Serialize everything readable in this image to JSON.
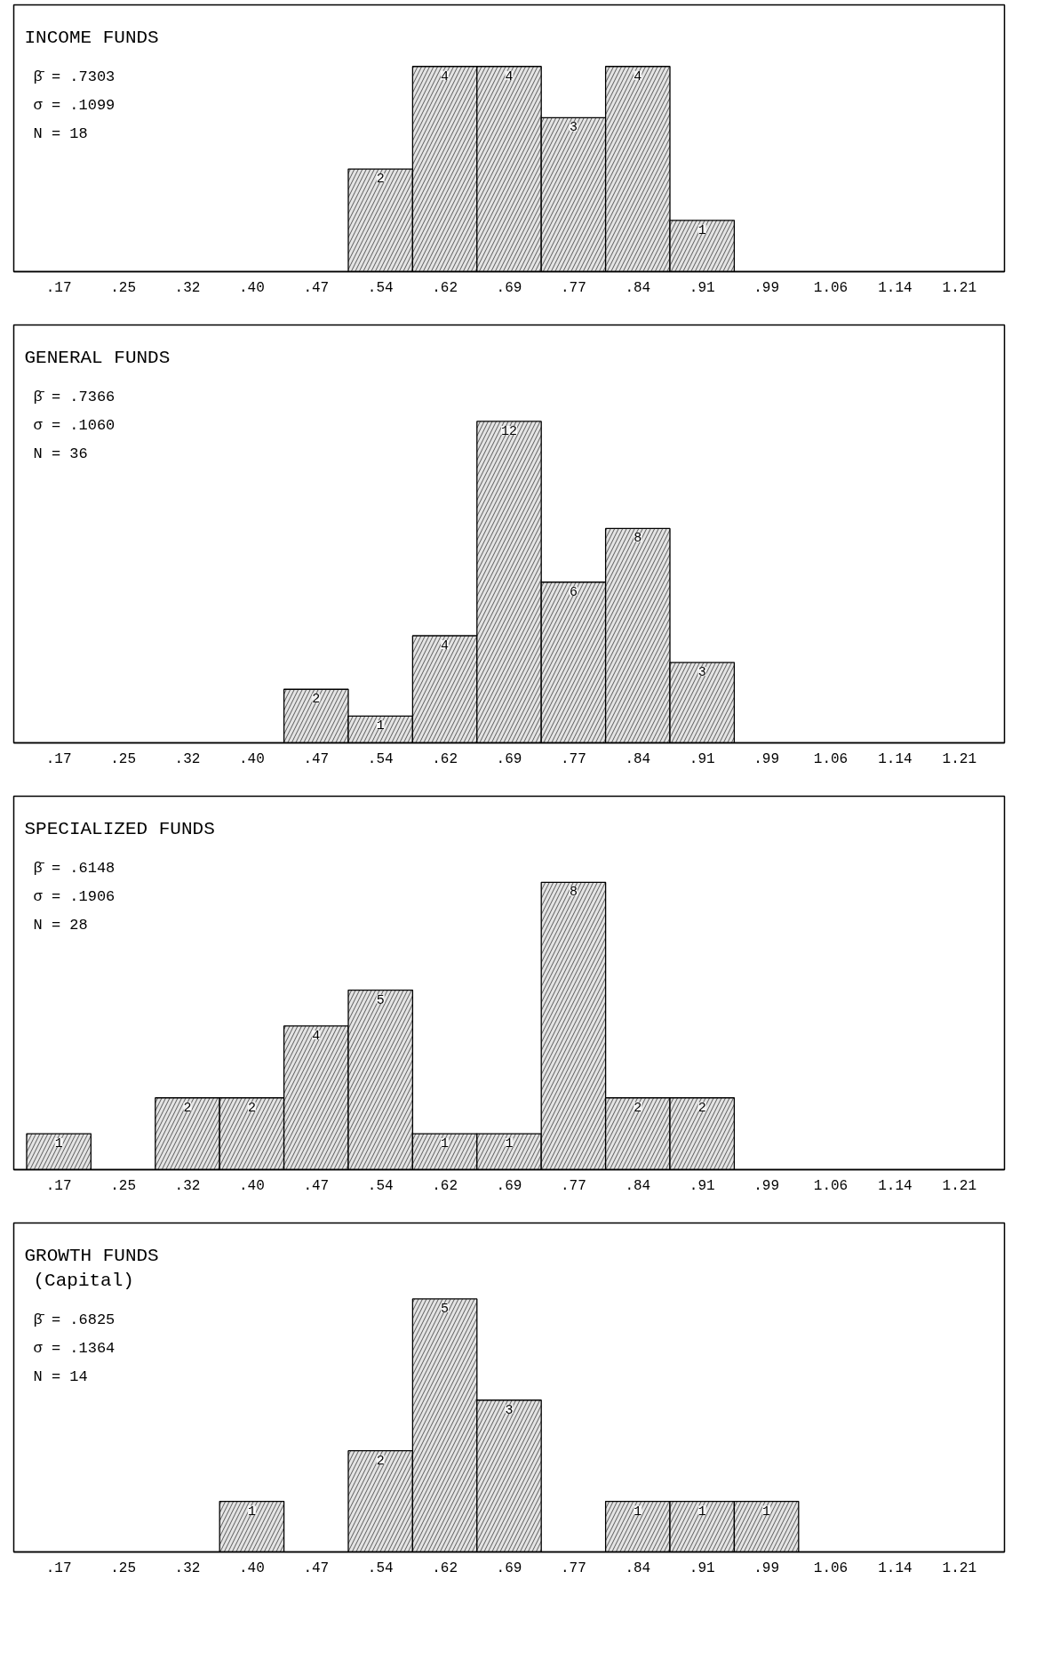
{
  "chart_data": [
    {
      "type": "bar",
      "title": "INCOME FUNDS",
      "annotations": [
        "β̄ = .7303",
        "σ = .1099",
        "N = 18"
      ],
      "categories": [
        ".17",
        ".25",
        ".32",
        ".40",
        ".47",
        ".54",
        ".62",
        ".69",
        ".77",
        ".84",
        ".91",
        ".99",
        "1.06",
        "1.14",
        "1.21"
      ],
      "values": [
        null,
        null,
        null,
        null,
        null,
        2,
        4,
        4,
        3,
        4,
        1,
        null,
        null,
        null,
        null
      ],
      "color": "#e4e4e4",
      "data_labels": true,
      "tick_labels": "x"
    },
    {
      "type": "bar",
      "title": "GENERAL FUNDS",
      "annotations": [
        "β̄ = .7366",
        "σ = .1060",
        "N = 36"
      ],
      "categories": [
        ".17",
        ".25",
        ".32",
        ".40",
        ".47",
        ".54",
        ".62",
        ".69",
        ".77",
        ".84",
        ".91",
        ".99",
        "1.06",
        "1.14",
        "1.21"
      ],
      "values": [
        null,
        null,
        null,
        null,
        2,
        1,
        4,
        12,
        6,
        8,
        3,
        null,
        null,
        null,
        null
      ],
      "color": "#e4e4e4",
      "data_labels": true,
      "tick_labels": "x"
    },
    {
      "type": "bar",
      "title": "SPECIALIZED FUNDS",
      "annotations": [
        "β̄ = .6148",
        "σ = .1906",
        "N = 28"
      ],
      "categories": [
        ".17",
        ".25",
        ".32",
        ".40",
        ".47",
        ".54",
        ".62",
        ".69",
        ".77",
        ".84",
        ".91",
        ".99",
        "1.06",
        "1.14",
        "1.21"
      ],
      "values": [
        1,
        null,
        2,
        2,
        4,
        5,
        1,
        1,
        8,
        2,
        2,
        null,
        null,
        null,
        null
      ],
      "color": "#e4e4e4",
      "data_labels": true,
      "tick_labels": "x"
    },
    {
      "type": "bar",
      "title": "GROWTH FUNDS",
      "subtitle": "(Capital)",
      "annotations": [
        "β̄ = .6825",
        "σ = .1364",
        "N = 14"
      ],
      "categories": [
        ".17",
        ".25",
        ".32",
        ".40",
        ".47",
        ".54",
        ".62",
        ".69",
        ".77",
        ".84",
        ".91",
        ".99",
        "1.06",
        "1.14",
        "1.21"
      ],
      "values": [
        null,
        null,
        null,
        1,
        null,
        2,
        5,
        3,
        null,
        1,
        1,
        1,
        null,
        null,
        null
      ],
      "color": "#e4e4e4",
      "data_labels": true,
      "tick_labels": "x"
    }
  ]
}
